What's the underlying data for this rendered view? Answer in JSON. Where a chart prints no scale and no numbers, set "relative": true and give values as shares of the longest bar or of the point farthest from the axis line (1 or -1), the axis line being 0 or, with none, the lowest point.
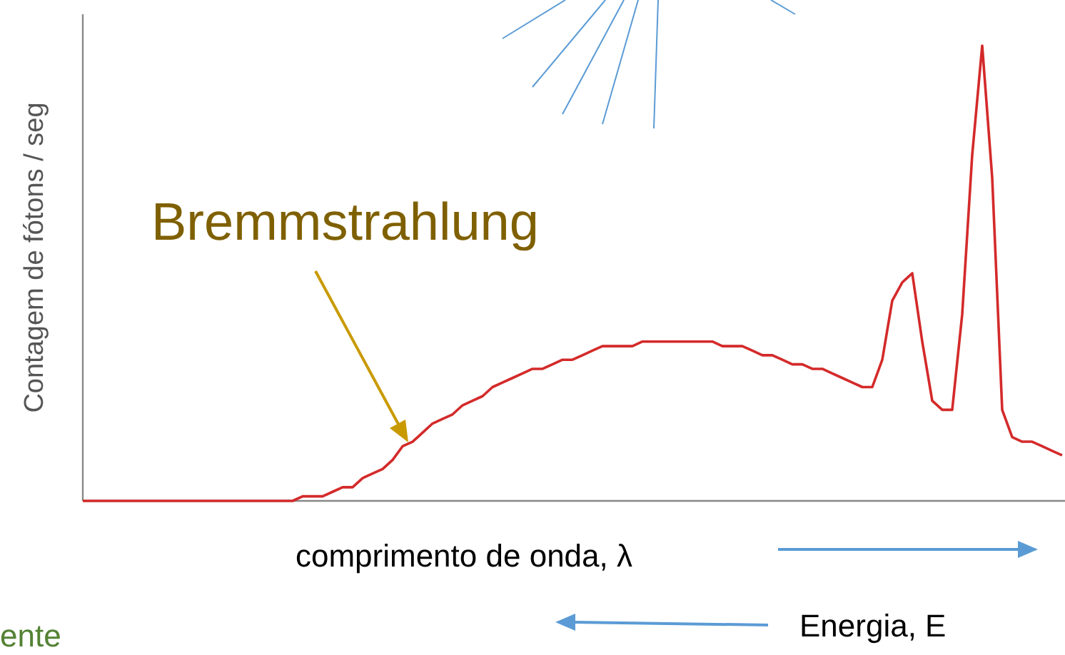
{
  "chart_data": {
    "type": "line",
    "relative": true,
    "ylabel": "Contagem de fótons / seg",
    "xlabel": "comprimento de onda, λ",
    "annotations": [
      "Bremmstrahlung",
      "Energia, E",
      "ente"
    ],
    "categories": [
      null,
      null,
      null,
      null,
      null,
      null,
      null,
      null,
      null,
      null,
      null,
      null,
      null,
      null,
      null,
      null,
      null,
      null,
      null,
      null,
      null,
      null,
      null,
      null,
      null,
      null,
      null,
      null,
      null,
      null,
      null,
      null,
      null,
      null,
      null,
      null,
      null,
      null,
      null,
      null,
      null,
      null,
      null,
      null,
      null,
      null,
      null,
      null,
      null,
      null,
      null,
      null,
      null,
      null,
      null,
      null,
      null,
      null,
      null,
      null,
      null,
      null,
      null,
      null,
      null,
      null,
      null,
      null,
      null,
      null,
      null,
      null,
      null,
      null,
      null,
      null,
      null,
      null,
      null,
      null,
      null,
      null,
      null,
      null,
      null,
      null,
      null,
      null,
      null,
      null,
      null,
      null,
      null,
      null,
      null,
      null,
      null,
      null,
      null
    ],
    "series": [
      {
        "color": "#d42a2a",
        "values": [
          0,
          0,
          0,
          0,
          0,
          0,
          0,
          0,
          0,
          0,
          0,
          0,
          0,
          0,
          0,
          0,
          0,
          0,
          0,
          0,
          0,
          0,
          0.01,
          0.01,
          0.01,
          0.02,
          0.03,
          0.03,
          0.05,
          0.06,
          0.07,
          0.09,
          0.12,
          0.13,
          0.15,
          0.17,
          0.18,
          0.19,
          0.21,
          0.22,
          0.23,
          0.25,
          0.26,
          0.27,
          0.28,
          0.29,
          0.29,
          0.3,
          0.31,
          0.31,
          0.32,
          0.33,
          0.34,
          0.34,
          0.34,
          0.34,
          0.35,
          0.35,
          0.35,
          0.35,
          0.35,
          0.35,
          0.35,
          0.35,
          0.34,
          0.34,
          0.34,
          0.33,
          0.32,
          0.32,
          0.31,
          0.3,
          0.3,
          0.29,
          0.29,
          0.28,
          0.27,
          0.26,
          0.25,
          0.25,
          0.31,
          0.44,
          0.48,
          0.5,
          0.35,
          0.22,
          0.2,
          0.2,
          0.41,
          0.76,
          1,
          0.71,
          0.2,
          0.14,
          0.13,
          0.13,
          0.12,
          0.11,
          0.1
        ]
      }
    ]
  }
}
